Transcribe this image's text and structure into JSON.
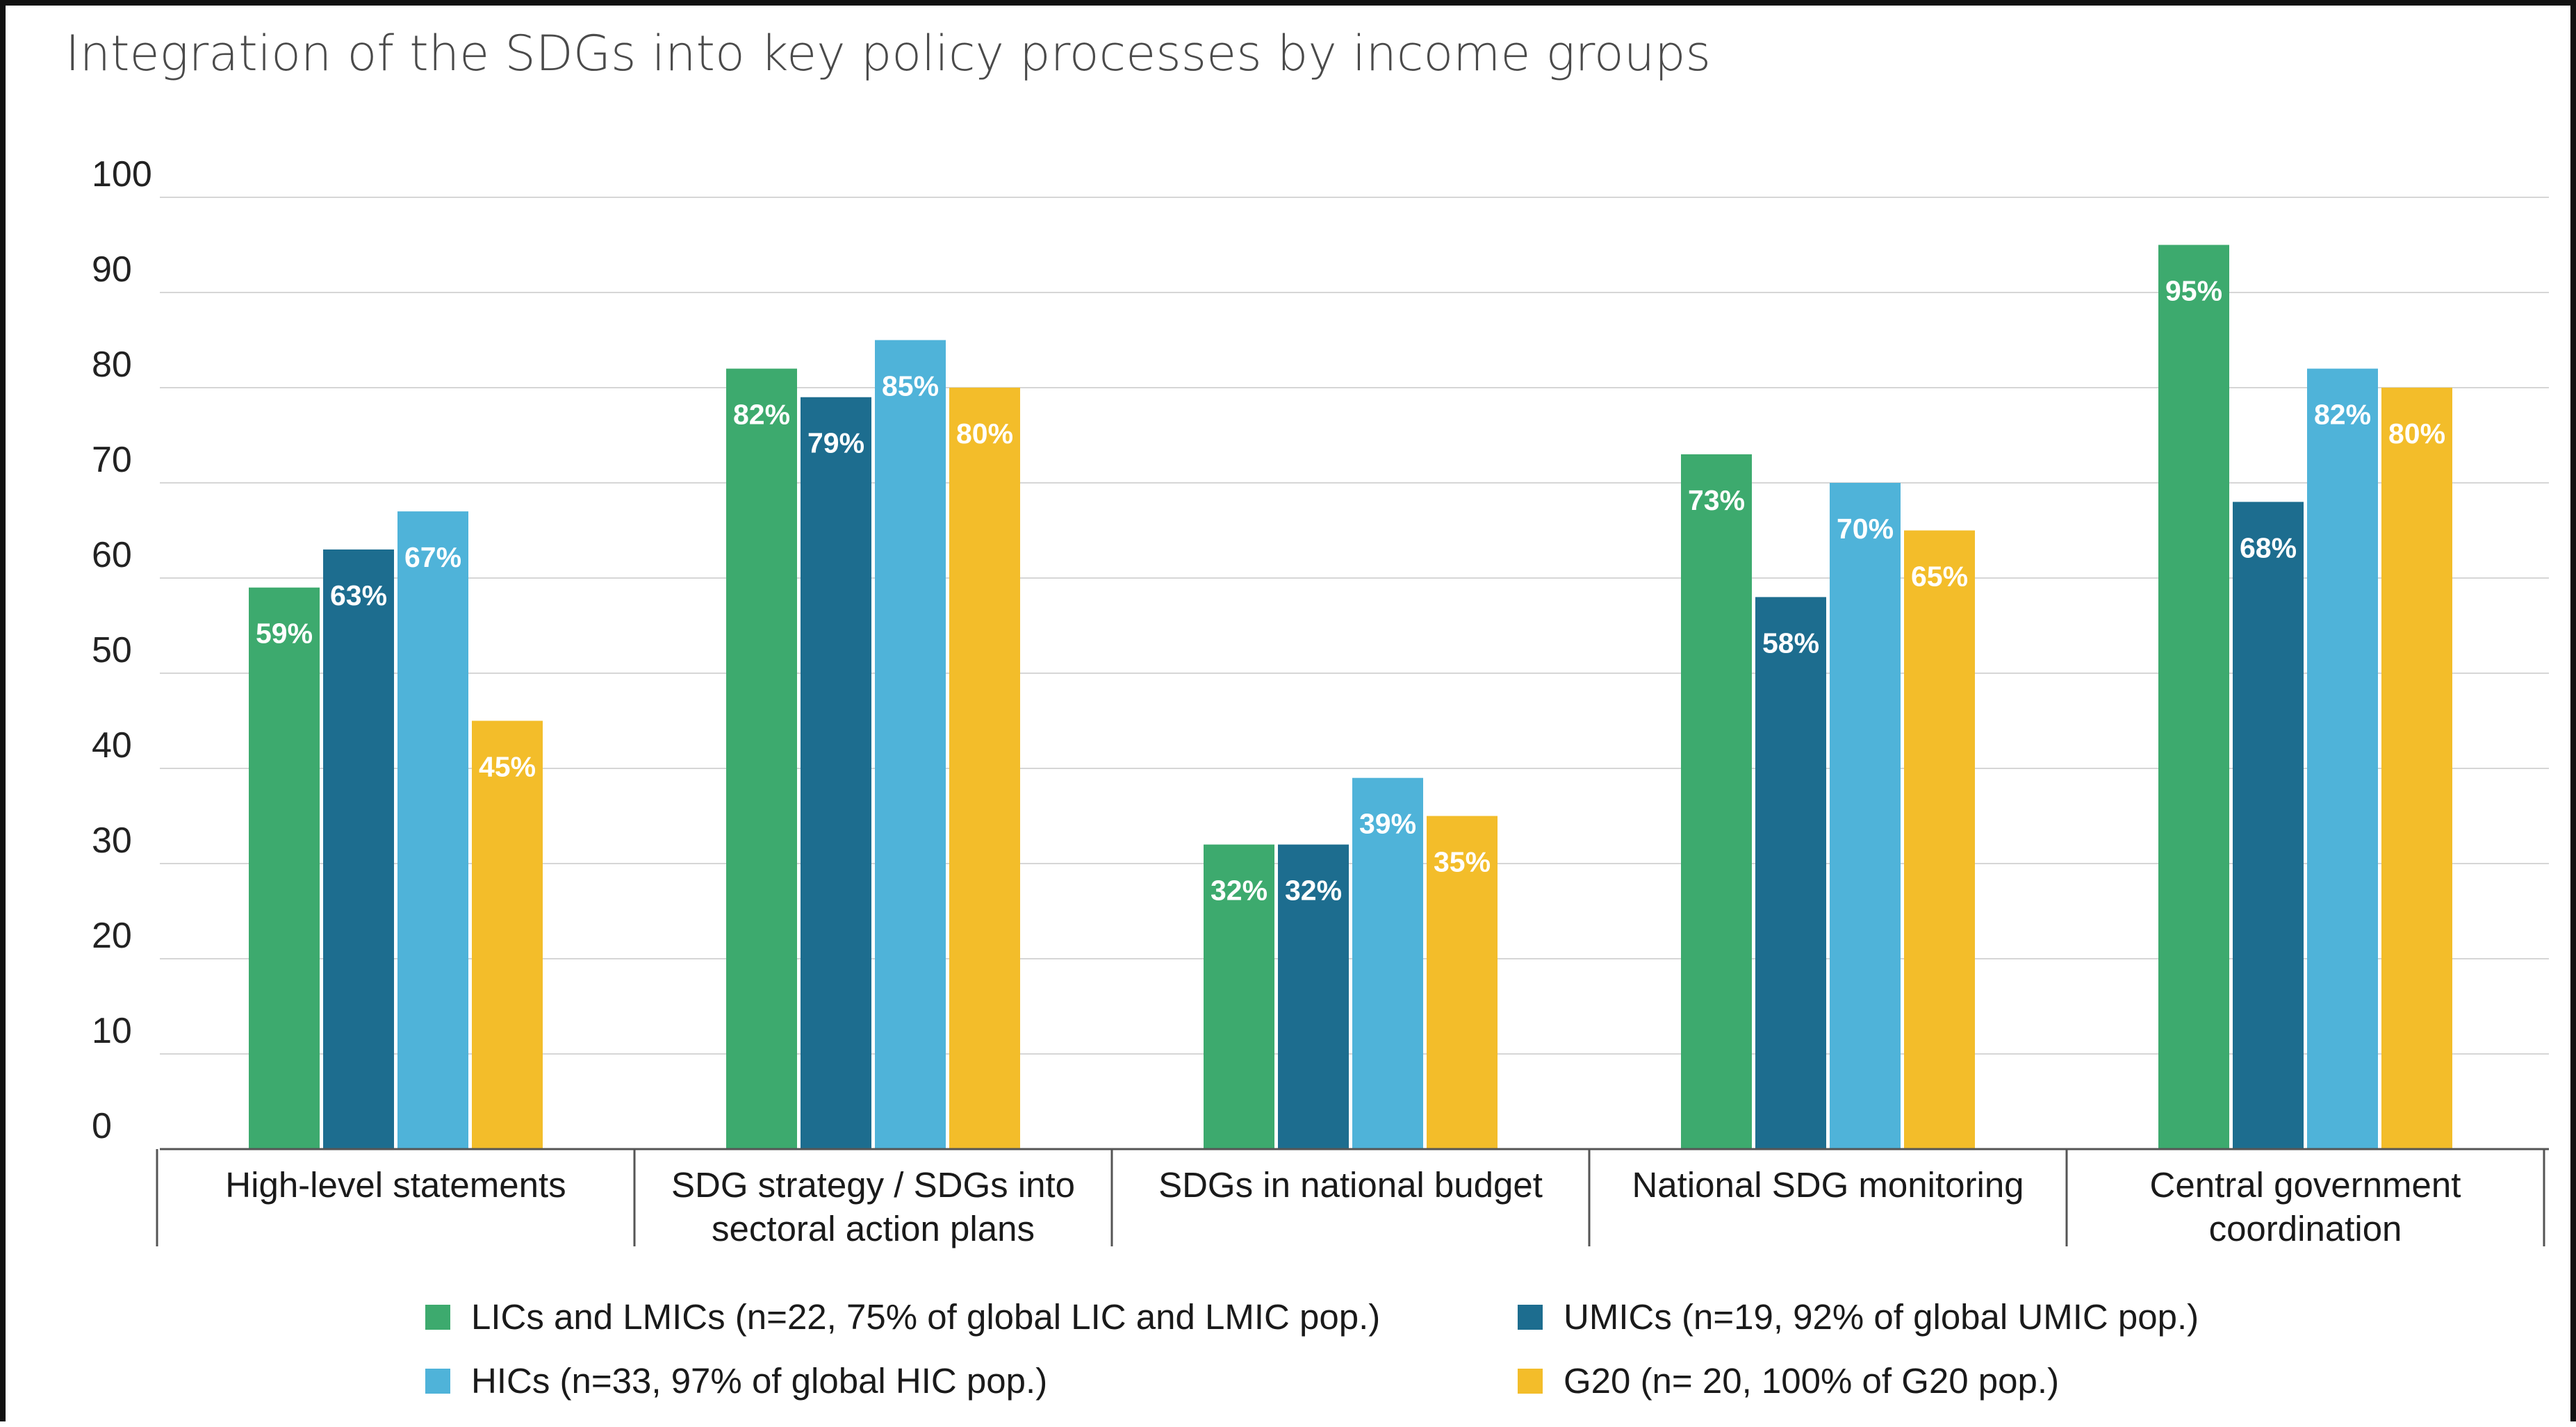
{
  "chart_data": {
    "type": "bar",
    "title": "Integration of the SDGs into key policy processes by income groups",
    "xlabel": "",
    "ylabel": "",
    "ylim": [
      0,
      100
    ],
    "yticks": [
      0,
      10,
      20,
      30,
      40,
      50,
      60,
      70,
      80,
      90,
      100
    ],
    "grid": true,
    "legend_position": "bottom",
    "categories": [
      [
        "High-level statements"
      ],
      [
        "SDG strategy / SDGs into",
        "sectoral action plans"
      ],
      [
        "SDGs in national budget"
      ],
      [
        "National SDG monitoring"
      ],
      [
        "Central government",
        "coordination"
      ]
    ],
    "series": [
      {
        "name": "LICs and LMICs (n=22, 75% of global LIC and LMIC pop.)",
        "color": "#3daa6e",
        "values": [
          59,
          82,
          32,
          73,
          95
        ],
        "labels": [
          "59%",
          "82%",
          "32%",
          "73%",
          "95%"
        ]
      },
      {
        "name": "UMICs (n=19, 92% of global UMIC pop.)",
        "color": "#1d6d8f",
        "values": [
          63,
          79,
          32,
          58,
          68
        ],
        "labels": [
          "63%",
          "79%",
          "32%",
          "58%",
          "68%"
        ]
      },
      {
        "name": "HICs (n=33, 97% of global HIC pop.)",
        "color": "#4fb3d9",
        "values": [
          67,
          85,
          39,
          70,
          82
        ],
        "labels": [
          "67%",
          "85%",
          "39%",
          "70%",
          "82%"
        ]
      },
      {
        "name": "G20 (n= 20, 100% of G20 pop.)",
        "color": "#f3bd2a",
        "values": [
          45,
          80,
          35,
          65,
          80
        ],
        "labels": [
          "45%",
          "80%",
          "35%",
          "65%",
          "80%"
        ]
      }
    ]
  }
}
